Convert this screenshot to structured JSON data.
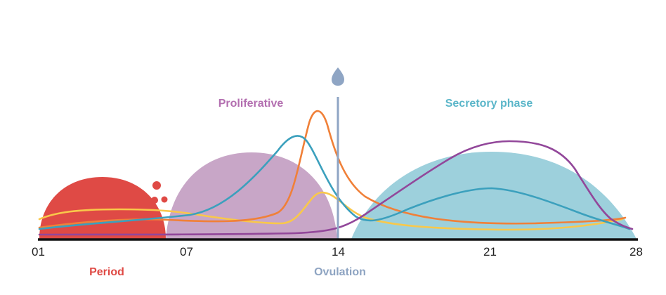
{
  "colors": {
    "period": "#df4a45",
    "proliferative": "#c8a6c7",
    "proliferative_label": "#b36fb0",
    "secretory": "#9dd0dc",
    "secretory_label": "#5bb6c9",
    "ovulation": "#8fa5c4",
    "ovulation_label": "#8ea4c2",
    "axis": "#111111",
    "curve_blue": "#3ba0bd",
    "curve_orange": "#f08038",
    "curve_yellow": "#f9c84a",
    "curve_purple": "#92479a"
  },
  "labels": {
    "proliferative": "Proliferative",
    "secretory": "Secretory phase",
    "period": "Period",
    "ovulation": "Ovulation"
  },
  "axis": {
    "ticks": [
      "01",
      "07",
      "14",
      "21",
      "28"
    ]
  },
  "icons": {
    "ovulation_marker": "egg-drop-icon",
    "period_drops": "blood-drop-icon"
  }
}
